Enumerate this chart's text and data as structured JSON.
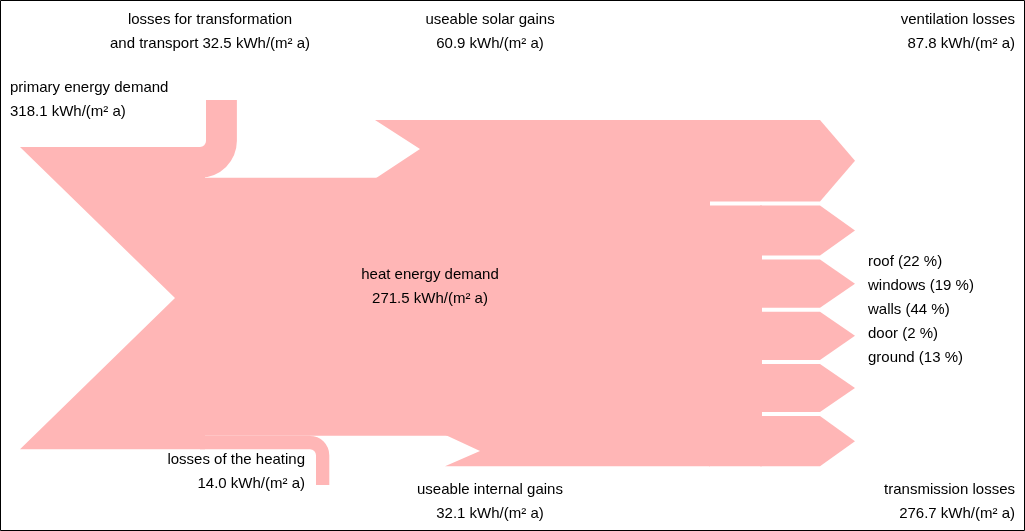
{
  "chart_data": {
    "type": "other",
    "categories": [
      "primary energy demand",
      "losses for transformation and transport",
      "losses of the heating",
      "useable solar gains",
      "useable internal gains",
      "heat energy demand",
      "ventilation losses",
      "transmission losses"
    ],
    "values": [
      318.1,
      32.5,
      14.0,
      60.9,
      32.1,
      271.5,
      87.8,
      276.7
    ],
    "value_labels": [
      "318.1 kWh/(m² a)",
      "32.5 kWh/(m² a)",
      "14.0 kWh/(m² a)",
      "60.9 kWh/(m² a)",
      "32.1 kWh/(m² a)",
      "271.5 kWh/(m² a)",
      "87.8 kWh/(m² a)",
      "276.7 kWh/(m² a)"
    ],
    "color": "#ffb6b6",
    "annotations": [
      "roof (22 %)",
      "windows (19 %)",
      "walls (44 %)",
      "door (2 %)",
      "ground (13 %)"
    ]
  }
}
